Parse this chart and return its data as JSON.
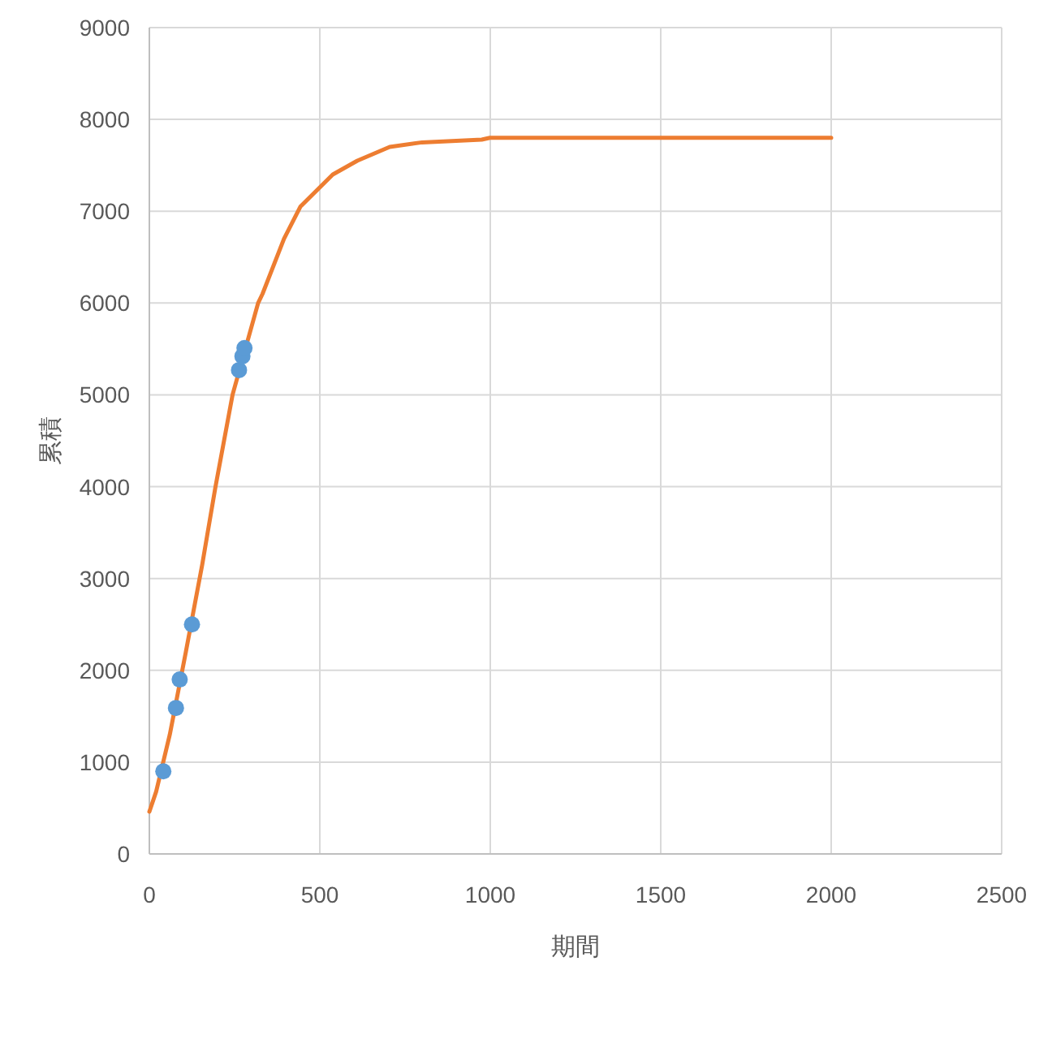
{
  "chart_data": {
    "type": "scatter",
    "xlabel": "期間",
    "ylabel": "累積",
    "xlim": [
      0,
      2500
    ],
    "xticks": [
      0,
      500,
      1000,
      1500,
      2000,
      2500
    ],
    "ylim": [
      0,
      9000
    ],
    "yticks": [
      0,
      1000,
      2000,
      3000,
      4000,
      5000,
      6000,
      7000,
      8000,
      9000
    ],
    "grid": true,
    "series": [
      {
        "type": "line",
        "color": "#ed7d31",
        "marker": "none",
        "line_style": "solid",
        "x": [
          0,
          20,
          60,
          107,
          155,
          194,
          244,
          319,
          332,
          395,
          443,
          538,
          610,
          705,
          800,
          975,
          999,
          2000
        ],
        "values": [
          460,
          680,
          1300,
          2200,
          3150,
          4000,
          5000,
          6000,
          6100,
          6700,
          7050,
          7400,
          7550,
          7700,
          7750,
          7780,
          7800,
          7800
        ]
      },
      {
        "color": "#5b9bd5",
        "marker": "circle",
        "x": [
          41,
          78,
          89,
          125,
          263,
          273,
          279
        ],
        "values": [
          900,
          1590,
          1900,
          2500,
          5270,
          5420,
          5510
        ]
      }
    ]
  }
}
